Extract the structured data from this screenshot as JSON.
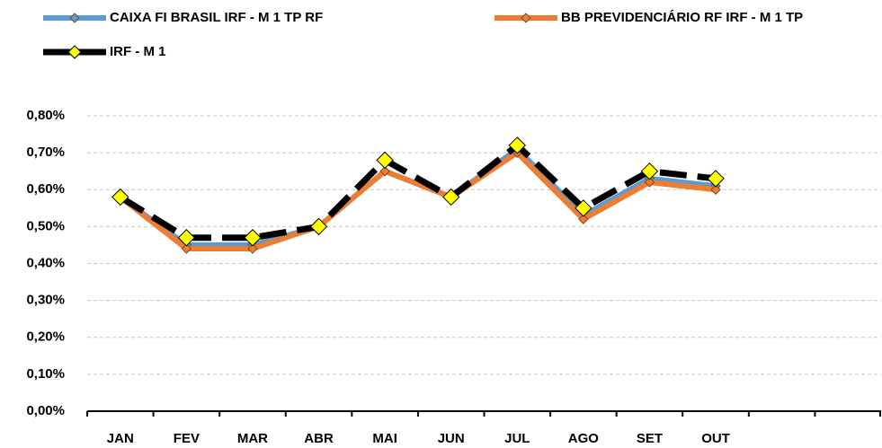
{
  "chart_data": {
    "type": "line",
    "categories": [
      "JAN",
      "FEV",
      "MAR",
      "ABR",
      "MAI",
      "JUN",
      "JUL",
      "AGO",
      "SET",
      "OUT",
      null,
      null
    ],
    "series": [
      {
        "name": "CAIXA FI BRASIL IRF - M 1 TP RF",
        "color": "#5b9bd5",
        "values": [
          0.58,
          0.45,
          0.45,
          0.5,
          0.65,
          0.58,
          0.71,
          0.53,
          0.63,
          0.61,
          null,
          null
        ]
      },
      {
        "name": "BB PREVIDENCIÁRIO RF IRF - M 1 TP",
        "color": "#ed7d31",
        "values": [
          0.58,
          0.44,
          0.44,
          0.5,
          0.65,
          0.58,
          0.7,
          0.52,
          0.62,
          0.6,
          null,
          null
        ]
      },
      {
        "name": "IRF - M 1",
        "color": "#000000",
        "marker_color": "#ffff00",
        "values": [
          0.58,
          0.47,
          0.47,
          0.5,
          0.68,
          0.58,
          0.72,
          0.55,
          0.65,
          0.63,
          null,
          null
        ]
      }
    ],
    "ylim": [
      0,
      0.8
    ],
    "yticks": [
      {
        "value": 0,
        "label": "0,00%"
      },
      {
        "value": 0.1,
        "label": "0,10%"
      },
      {
        "value": 0.2,
        "label": "0,20%"
      },
      {
        "value": 0.3,
        "label": "0,30%"
      },
      {
        "value": 0.4,
        "label": "0,40%"
      },
      {
        "value": 0.5,
        "label": "0,50%"
      },
      {
        "value": 0.6,
        "label": "0,60%"
      },
      {
        "value": 0.7,
        "label": "0,70%"
      },
      {
        "value": 0.8,
        "label": "0,80%"
      }
    ],
    "grid": true,
    "legend": "top"
  }
}
